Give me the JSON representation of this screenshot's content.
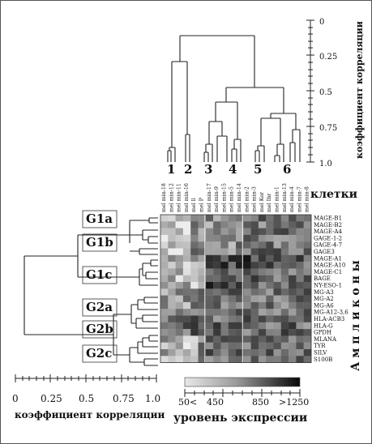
{
  "figure": {
    "top_axis": {
      "label": "коэффициент корреляции",
      "ticks": [
        "0",
        "0.25",
        "0.5",
        "0.75",
        "1.0"
      ]
    },
    "bottom_axis": {
      "label": "коэффициент корреляции",
      "ticks": [
        "0",
        "0.25",
        "0.5",
        "0.75",
        "1.0"
      ]
    },
    "cluster_numbers": [
      "1",
      "2",
      "3",
      "4",
      "5",
      "6"
    ],
    "cells_label": "клетки",
    "amplicons_label": "А м п л и к о н ы",
    "group_labels": [
      "G1a",
      "G1b",
      "G1c",
      "G2a",
      "G2b",
      "G2c"
    ],
    "cell_lines": [
      "mel min-18",
      "mel min-12",
      "mel min-11",
      "mel min-16",
      "mel ll",
      "mel P",
      "mel min-17",
      "mel min-9",
      "mel min-15",
      "mel min-5",
      "mel min-14",
      "mel min-2",
      "mel min-3",
      "mel Kor",
      "mel Ibr",
      "mel min-1",
      "mel min-13",
      "mel min-4",
      "mel min-7",
      "mel min-8"
    ],
    "genes": [
      "MAGE-B1",
      "MAGE-B2",
      "MAGE-A4",
      "GAGE-1-2",
      "GAGE-4-7",
      "GAGE3",
      "MAGE-A1",
      "MAGE-A10",
      "MAGE-C1",
      "BAGE",
      "NY-ESO-1",
      "MG-A3",
      "MG-A2",
      "MG-A6",
      "MG-A12-3,6",
      "HLA-ACB3",
      "HLA-G",
      "GPDH",
      "MLANA",
      "TYR",
      "SILV",
      "S100B"
    ],
    "legend": {
      "label": "уровень экспрессии",
      "ticks": [
        "50<",
        "450",
        "850",
        ">1250"
      ]
    }
  }
}
